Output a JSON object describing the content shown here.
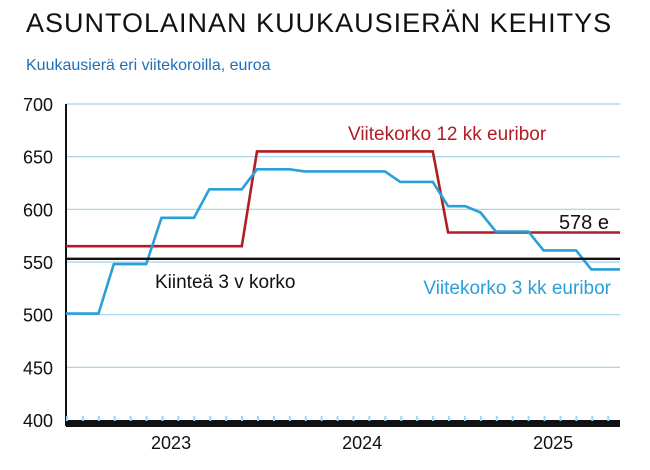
{
  "title": "ASUNTOLAINAN KUUKAUSIERÄN KEHITYS",
  "subtitle": "Kuukausierä eri viitekoroilla, euroa",
  "colors": {
    "subtitle": "#1f6fb5",
    "euribor12": "#b21d24",
    "euribor3": "#2aa0d8",
    "fixed": "#111111",
    "grid": "#9fd3ee",
    "axis": "#111111"
  },
  "chart_data": {
    "type": "line",
    "title": "ASUNTOLAINAN KUUKAUSIERÄN KEHITYS",
    "subtitle": "Kuukausierä eri viitekoroilla, euroa",
    "ylim": [
      400,
      700
    ],
    "yticks": [
      400,
      450,
      500,
      550,
      600,
      650,
      700
    ],
    "xlim": [
      2022.95,
      2025.85
    ],
    "xtick_labels": [
      {
        "label": "2023",
        "x": 2023.5
      },
      {
        "label": "2024",
        "x": 2024.5
      },
      {
        "label": "2025",
        "x": 2025.5
      }
    ],
    "grid": true,
    "series": [
      {
        "name": "Viitekorko 12 kk euribor",
        "color": "#b21d24",
        "points": [
          [
            2022.95,
            565
          ],
          [
            2023.87,
            565
          ],
          [
            2023.95,
            655
          ],
          [
            2024.87,
            655
          ],
          [
            2024.95,
            578
          ],
          [
            2025.85,
            578
          ]
        ]
      },
      {
        "name": "Viitekorko 3 kk euribor",
        "color": "#2aa0d8",
        "points": [
          [
            2022.95,
            501
          ],
          [
            2023.12,
            501
          ],
          [
            2023.2,
            548
          ],
          [
            2023.37,
            548
          ],
          [
            2023.45,
            592
          ],
          [
            2023.62,
            592
          ],
          [
            2023.7,
            619
          ],
          [
            2023.87,
            619
          ],
          [
            2023.95,
            638
          ],
          [
            2024.12,
            638
          ],
          [
            2024.2,
            636
          ],
          [
            2024.62,
            636
          ],
          [
            2024.7,
            626
          ],
          [
            2024.87,
            626
          ],
          [
            2024.95,
            603
          ],
          [
            2025.04,
            603
          ],
          [
            2025.12,
            597
          ],
          [
            2025.2,
            579
          ],
          [
            2025.37,
            579
          ],
          [
            2025.45,
            561
          ],
          [
            2025.62,
            561
          ],
          [
            2025.7,
            543
          ],
          [
            2025.85,
            543
          ]
        ]
      },
      {
        "name": "Kiinteä 3 v korko",
        "color": "#111111",
        "points": [
          [
            2022.95,
            553
          ],
          [
            2025.85,
            553
          ]
        ]
      }
    ],
    "annotations": [
      {
        "text": "Viitekorko 12 kk euribor",
        "color": "#b21d24"
      },
      {
        "text": "578 e",
        "color": "#111111"
      },
      {
        "text": "Kiinteä 3 v korko",
        "color": "#111111"
      },
      {
        "text": "Viitekorko 3 kk euribor",
        "color": "#2aa0d8"
      }
    ]
  }
}
